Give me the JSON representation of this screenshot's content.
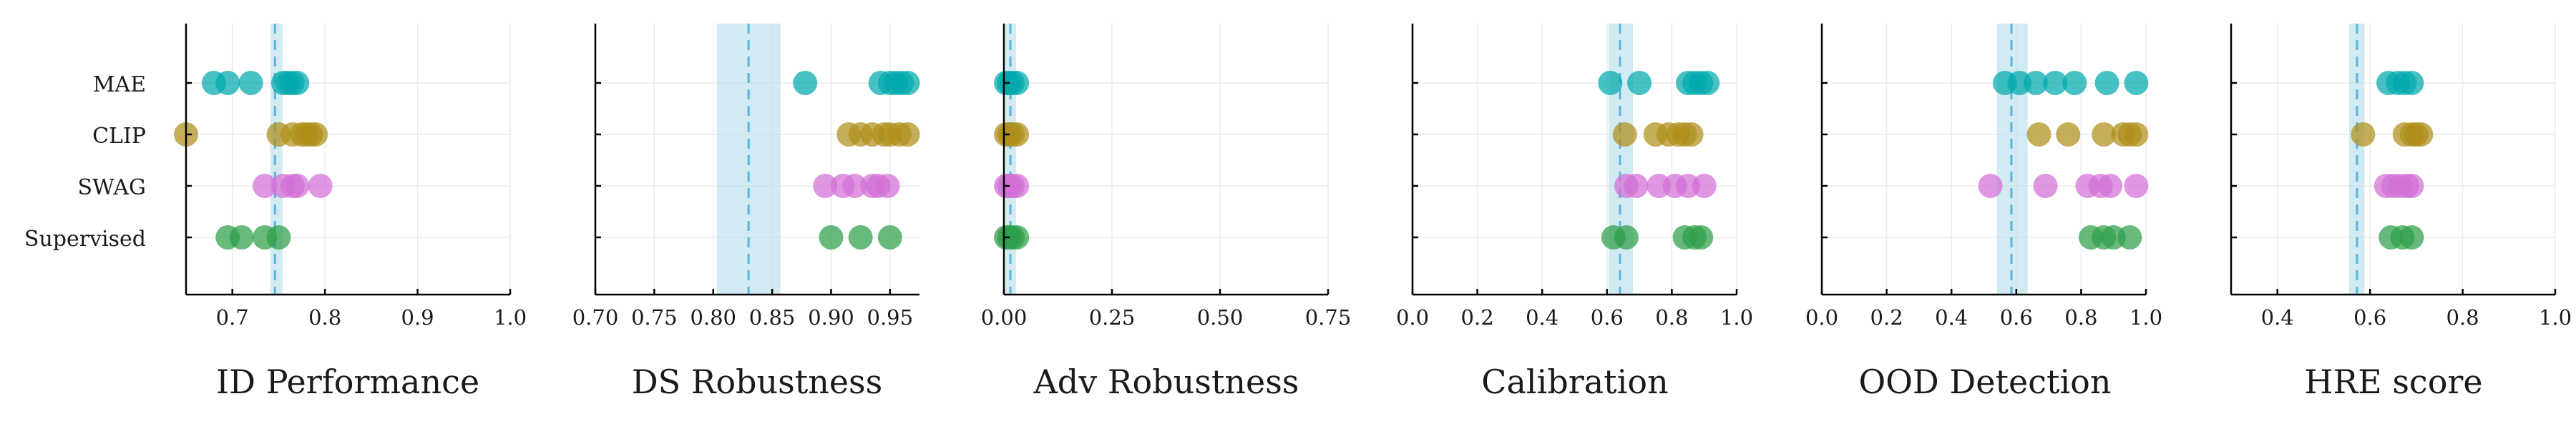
{
  "categories": [
    "MAE",
    "CLIP",
    "SWAG",
    "Supervised"
  ],
  "series_colors": {
    "MAE": "#00a9ad",
    "CLIP": "#ae8f1b",
    "SWAG": "#d26fd6",
    "Supervised": "#2e9e4a"
  },
  "band_color": "#add8e6",
  "line_color": "#5ab4e0",
  "chart_data": [
    {
      "type": "scatter",
      "xlabel": "ID Performance",
      "xlim": [
        0.65,
        1.0
      ],
      "xticks": [
        0.7,
        0.8,
        0.9,
        1.0
      ],
      "xtick_labels": [
        "0.7",
        "0.8",
        "0.9",
        "1.0"
      ],
      "mean": 0.746,
      "band": [
        0.741,
        0.754
      ],
      "points": {
        "MAE": [
          0.68,
          0.695,
          0.72,
          0.755,
          0.76,
          0.765,
          0.77
        ],
        "CLIP": [
          0.65,
          0.75,
          0.765,
          0.775,
          0.78,
          0.785,
          0.79
        ],
        "SWAG": [
          0.735,
          0.755,
          0.765,
          0.77,
          0.795
        ],
        "Supervised": [
          0.695,
          0.71,
          0.735,
          0.75
        ]
      }
    },
    {
      "type": "scatter",
      "xlabel": "DS Robustness",
      "xlim": [
        0.7,
        0.975
      ],
      "xticks": [
        0.7,
        0.75,
        0.8,
        0.85,
        0.9,
        0.95
      ],
      "xtick_labels": [
        "0.70",
        "0.75",
        "0.80",
        "0.85",
        "0.90",
        "0.95"
      ],
      "mean": 0.83,
      "band": [
        0.803,
        0.857
      ],
      "points": {
        "MAE": [
          0.878,
          0.942,
          0.95,
          0.955,
          0.96,
          0.965
        ],
        "CLIP": [
          0.915,
          0.925,
          0.935,
          0.945,
          0.95,
          0.958,
          0.965
        ],
        "SWAG": [
          0.895,
          0.91,
          0.92,
          0.935,
          0.94,
          0.948
        ],
        "Supervised": [
          0.9,
          0.925,
          0.95
        ]
      }
    },
    {
      "type": "scatter",
      "xlabel": "Adv Robustness",
      "xlim": [
        0.0,
        0.75
      ],
      "xticks": [
        0.0,
        0.25,
        0.5,
        0.75
      ],
      "xtick_labels": [
        "0.00",
        "0.25",
        "0.50",
        "0.75"
      ],
      "mean": 0.015,
      "band": [
        0.004,
        0.028
      ],
      "points": {
        "MAE": [
          0.005,
          0.012,
          0.02,
          0.03
        ],
        "CLIP": [
          0.005,
          0.012,
          0.02,
          0.03
        ],
        "SWAG": [
          0.005,
          0.012,
          0.02,
          0.03
        ],
        "Supervised": [
          0.005,
          0.012,
          0.02,
          0.03
        ]
      }
    },
    {
      "type": "scatter",
      "xlabel": "Calibration",
      "xlim": [
        0.0,
        1.0
      ],
      "xticks": [
        0.0,
        0.2,
        0.4,
        0.6,
        0.8,
        1.0
      ],
      "xtick_labels": [
        "0.0",
        "0.2",
        "0.4",
        "0.6",
        "0.8",
        "1.0"
      ],
      "mean": 0.64,
      "band": [
        0.605,
        0.68
      ],
      "points": {
        "MAE": [
          0.61,
          0.7,
          0.85,
          0.87,
          0.89,
          0.91
        ],
        "CLIP": [
          0.655,
          0.75,
          0.79,
          0.82,
          0.84,
          0.86
        ],
        "SWAG": [
          0.66,
          0.69,
          0.76,
          0.81,
          0.85,
          0.9
        ],
        "Supervised": [
          0.62,
          0.66,
          0.84,
          0.87,
          0.89
        ]
      }
    },
    {
      "type": "scatter",
      "xlabel": "OOD Detection",
      "xlim": [
        0.0,
        1.0
      ],
      "xticks": [
        0.0,
        0.2,
        0.4,
        0.6,
        0.8,
        1.0
      ],
      "xtick_labels": [
        "0.0",
        "0.2",
        "0.4",
        "0.6",
        "0.8",
        "1.0"
      ],
      "mean": 0.585,
      "band": [
        0.54,
        0.635
      ],
      "points": {
        "MAE": [
          0.565,
          0.61,
          0.66,
          0.72,
          0.78,
          0.88,
          0.97
        ],
        "CLIP": [
          0.67,
          0.76,
          0.87,
          0.93,
          0.95,
          0.97
        ],
        "SWAG": [
          0.52,
          0.69,
          0.82,
          0.86,
          0.89,
          0.97
        ],
        "Supervised": [
          0.83,
          0.87,
          0.9,
          0.95
        ]
      }
    },
    {
      "type": "scatter",
      "xlabel": "HRE score",
      "xlim": [
        0.3,
        1.0
      ],
      "xticks": [
        0.4,
        0.6,
        0.8,
        1.0
      ],
      "xtick_labels": [
        "0.4",
        "0.6",
        "0.8",
        "1.0"
      ],
      "mean": 0.572,
      "band": [
        0.555,
        0.588
      ],
      "points": {
        "MAE": [
          0.64,
          0.66,
          0.675,
          0.69
        ],
        "CLIP": [
          0.585,
          0.675,
          0.69,
          0.7,
          0.71
        ],
        "SWAG": [
          0.635,
          0.65,
          0.665,
          0.68,
          0.69
        ],
        "Supervised": [
          0.645,
          0.67,
          0.69
        ]
      }
    }
  ]
}
